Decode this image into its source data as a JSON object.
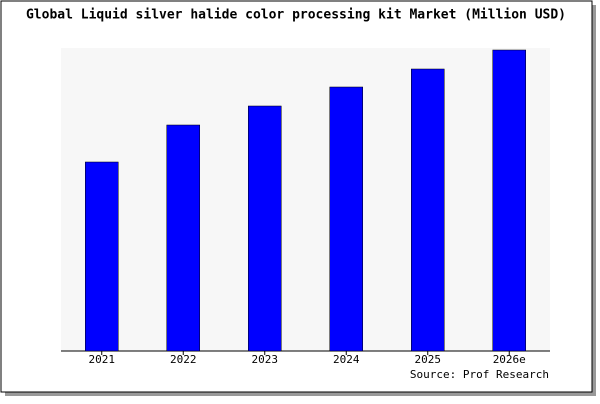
{
  "chart_data": {
    "type": "bar",
    "title": "Global Liquid silver halide color processing kit Market (Million USD)",
    "categories": [
      "2021",
      "2022",
      "2023",
      "2024",
      "2025",
      "2026e"
    ],
    "values": [
      189,
      226,
      245,
      264,
      282,
      301
    ],
    "color": "#0000ff",
    "source": "Source: Prof Research"
  }
}
